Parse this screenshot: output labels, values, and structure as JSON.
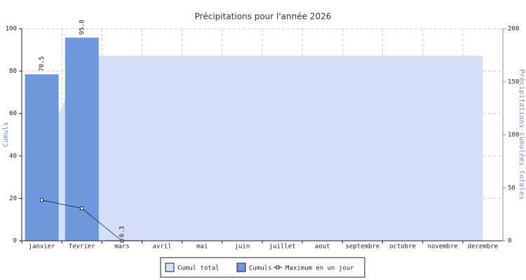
{
  "chart_data": {
    "type": "bar",
    "title": "Précipitations pour l'année 2026",
    "y_label": "Cumuls",
    "y2_label": "Précipitations cumulées totales",
    "categories": [
      "janvier",
      "fevrier",
      "mars",
      "avril",
      "mai",
      "juin",
      "juillet",
      "aout",
      "septembre",
      "octobre",
      "novembre",
      "decembre"
    ],
    "series": [
      {
        "name": "Cumul total",
        "type": "area",
        "axis": "y2",
        "color": "#d3e0f8",
        "values": [
          78.5,
          174.3,
          174.6,
          174.6,
          174.6,
          174.6,
          174.6,
          174.6,
          174.6,
          174.6,
          174.6,
          174.6
        ]
      },
      {
        "name": "Cumuls",
        "type": "bar",
        "color": "#6f97dc",
        "values": [
          78.5,
          95.8,
          0.3,
          null,
          null,
          null,
          null,
          null,
          null,
          null,
          null,
          null
        ]
      },
      {
        "name": "Maximum en un jour",
        "type": "line",
        "color": "#1a2a5a",
        "values": [
          19.2,
          15.3,
          0,
          null,
          null,
          null,
          null,
          null,
          null,
          null,
          null,
          null
        ]
      }
    ],
    "ylim": [
      0,
      100
    ],
    "yticks": [
      0,
      20,
      40,
      60,
      80,
      100
    ],
    "y2lim": [
      0,
      200
    ],
    "y2ticks": [
      0,
      50,
      100,
      150,
      200
    ],
    "grid": true
  }
}
